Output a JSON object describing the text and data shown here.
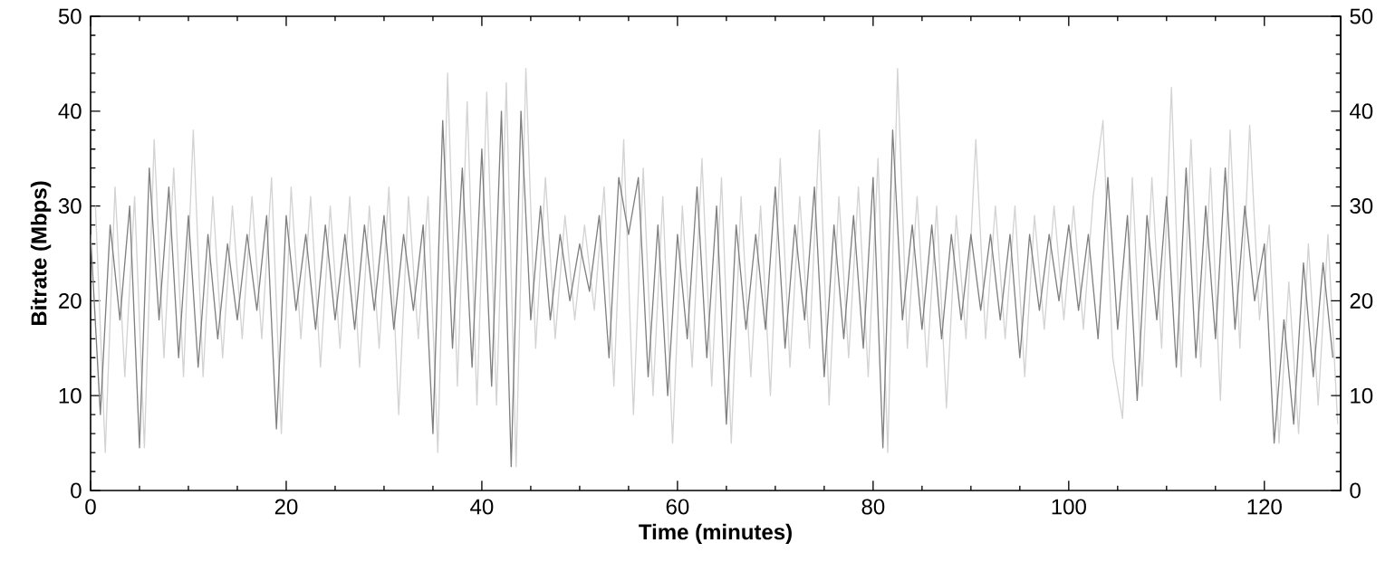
{
  "chart_data": {
    "type": "line",
    "xlabel": "Time (minutes)",
    "ylabel": "Bitrate (Mbps)",
    "xlim": [
      0,
      127.8
    ],
    "ylim": [
      0,
      50
    ],
    "xticks": [
      0,
      20,
      40,
      60,
      80,
      100,
      120
    ],
    "yticks": [
      0,
      10,
      20,
      30,
      40,
      50
    ],
    "y2lim": [
      0,
      50
    ],
    "y2ticks": [
      0,
      10,
      20,
      30,
      40,
      50
    ],
    "marker": "none",
    "line_style": "solid",
    "series": [
      {
        "color": "#d3d3d3",
        "x": [
          0.5,
          1.5,
          2.5,
          3.5,
          4.5,
          5.5,
          6.5,
          7.5,
          8.5,
          9.5,
          10.5,
          11.5,
          12.5,
          13.5,
          14.5,
          15.5,
          16.5,
          17.5,
          18.5,
          19.5,
          20.5,
          21.5,
          22.5,
          23.5,
          24.5,
          25.5,
          26.5,
          27.5,
          28.5,
          29.5,
          30.5,
          31.5,
          32.5,
          33.5,
          34.5,
          35.5,
          36.5,
          37.5,
          38.5,
          39.5,
          40.5,
          41.5,
          42.5,
          43.5,
          44.5,
          45.5,
          46.5,
          47.5,
          48.5,
          49.5,
          50.5,
          51.5,
          52.5,
          53.5,
          54.5,
          55.5,
          56.5,
          57.5,
          58.5,
          59.5,
          60.5,
          61.5,
          62.5,
          63.5,
          64.5,
          65.5,
          66.5,
          67.5,
          68.5,
          69.5,
          70.5,
          71.5,
          72.5,
          73.5,
          74.5,
          75.5,
          76.5,
          77.5,
          78.5,
          79.5,
          80.5,
          81.5,
          82.5,
          83.5,
          84.5,
          85.5,
          86.5,
          87.5,
          88.5,
          89.5,
          90.5,
          91.5,
          92.5,
          93.5,
          94.5,
          95.5,
          96.5,
          97.5,
          98.5,
          99.5,
          100.5,
          101.5,
          102.5,
          103.5,
          104.5,
          105.5,
          106.5,
          107.5,
          108.5,
          109.5,
          110.5,
          111.5,
          112.5,
          113.5,
          114.5,
          115.5,
          116.5,
          117.5,
          118.5,
          119.5,
          120.5,
          121.5,
          122.5,
          123.5,
          124.5,
          125.5,
          126.5,
          127.5
        ],
        "values": [
          30,
          4,
          32,
          12,
          31,
          4.5,
          37,
          14,
          34,
          12,
          38,
          12,
          31,
          14,
          30,
          16,
          31,
          16,
          33,
          6,
          32,
          16,
          31,
          13,
          30,
          15,
          31,
          13,
          30,
          15,
          32,
          8,
          31,
          16,
          31,
          4,
          44,
          11,
          41,
          9,
          42,
          9,
          43,
          2.5,
          44.5,
          15,
          33,
          16,
          29,
          18,
          28,
          19,
          32,
          11,
          37,
          8,
          34,
          10,
          31,
          5,
          30,
          13,
          35,
          11,
          33,
          5,
          31,
          12,
          30,
          10,
          35,
          13,
          31,
          15,
          38,
          9,
          31,
          14,
          32,
          12,
          35,
          4,
          44.5,
          15,
          31,
          13,
          30,
          8.7,
          29,
          16,
          37,
          16,
          30,
          16,
          30,
          12,
          29,
          17,
          30,
          18,
          30,
          17,
          31,
          39,
          14,
          7.6,
          33,
          11,
          33,
          15,
          42.5,
          12,
          37,
          13,
          34,
          9.5,
          38,
          15,
          38.5,
          18,
          28,
          5,
          22,
          6,
          26,
          9,
          27,
          7
        ]
      },
      {
        "color": "#808080",
        "x": [
          0,
          1,
          2,
          3,
          4,
          5,
          6,
          7,
          8,
          9,
          10,
          11,
          12,
          13,
          14,
          15,
          16,
          17,
          18,
          19,
          20,
          21,
          22,
          23,
          24,
          25,
          26,
          27,
          28,
          29,
          30,
          31,
          32,
          33,
          34,
          35,
          36,
          37,
          38,
          39,
          40,
          41,
          42,
          43,
          44,
          45,
          46,
          47,
          48,
          49,
          50,
          51,
          52,
          53,
          54,
          55,
          56,
          57,
          58,
          59,
          60,
          61,
          62,
          63,
          64,
          65,
          66,
          67,
          68,
          69,
          70,
          71,
          72,
          73,
          74,
          75,
          76,
          77,
          78,
          79,
          80,
          81,
          82,
          83,
          84,
          85,
          86,
          87,
          88,
          89,
          90,
          91,
          92,
          93,
          94,
          95,
          96,
          97,
          98,
          99,
          100,
          101,
          102,
          103,
          104,
          105,
          106,
          107,
          108,
          109,
          110,
          111,
          112,
          113,
          114,
          115,
          116,
          117,
          118,
          119,
          120,
          121,
          122,
          123,
          124,
          125,
          126,
          127
        ],
        "values": [
          27,
          8,
          28,
          18,
          30,
          4.5,
          34,
          18,
          32,
          14,
          29,
          13,
          27,
          16,
          26,
          18,
          27,
          19,
          29,
          6.5,
          29,
          19,
          27,
          17,
          28,
          18,
          27,
          17,
          28,
          19,
          29,
          17,
          27,
          19,
          28,
          6,
          39,
          15,
          34,
          13,
          36,
          11,
          40,
          2.5,
          40,
          18,
          30,
          18,
          27,
          20,
          26,
          21,
          29,
          14,
          33,
          27,
          33,
          12,
          28,
          10,
          27,
          16,
          32,
          14,
          30,
          7,
          28,
          17,
          27,
          17,
          32,
          15,
          28,
          18,
          32,
          12,
          28,
          16,
          29,
          15,
          33,
          4.5,
          38,
          18,
          28,
          17,
          28,
          16,
          27,
          18,
          27,
          19,
          27,
          18,
          27,
          14,
          27,
          19,
          27,
          20,
          28,
          19,
          27,
          16,
          33,
          17,
          29,
          9.5,
          29,
          18,
          31,
          13,
          34,
          14,
          30,
          16,
          34,
          17,
          30,
          20,
          26,
          5,
          18,
          7,
          24,
          12,
          24,
          14
        ]
      }
    ]
  }
}
